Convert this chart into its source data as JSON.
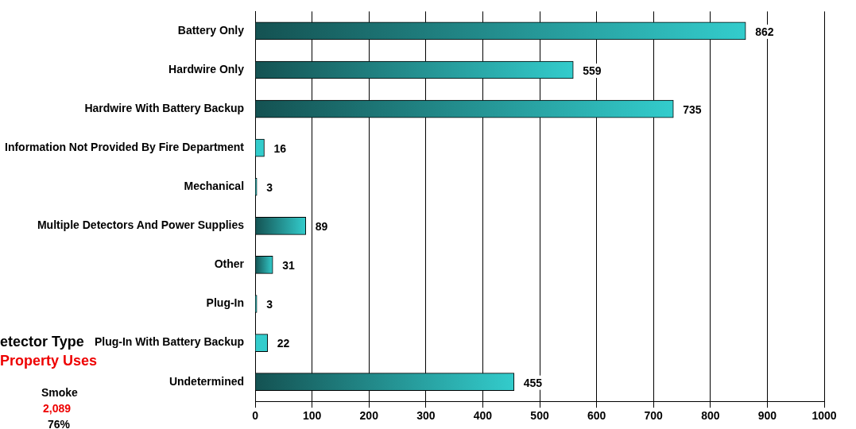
{
  "chart_data": {
    "type": "bar",
    "orientation": "horizontal",
    "categories": [
      "Battery Only",
      "Hardwire Only",
      "Hardwire With Battery Backup",
      "Information Not Provided By Fire Department",
      "Mechanical",
      "Multiple Detectors And Power Supplies",
      "Other",
      "Plug-In",
      "Plug-In With Battery Backup",
      "Undetermined"
    ],
    "values": [
      862,
      559,
      735,
      16,
      3,
      89,
      31,
      3,
      22,
      455
    ],
    "color": "#33cccc",
    "xlim": [
      0,
      1000
    ],
    "xticks": [
      0,
      100,
      200,
      300,
      400,
      500,
      600,
      700,
      800,
      900,
      1000
    ],
    "grid": "x",
    "legend": false,
    "data_labels": true,
    "annotations": [
      "etector Type",
      "Property Uses",
      "Smoke",
      "2,089",
      "76%"
    ]
  }
}
